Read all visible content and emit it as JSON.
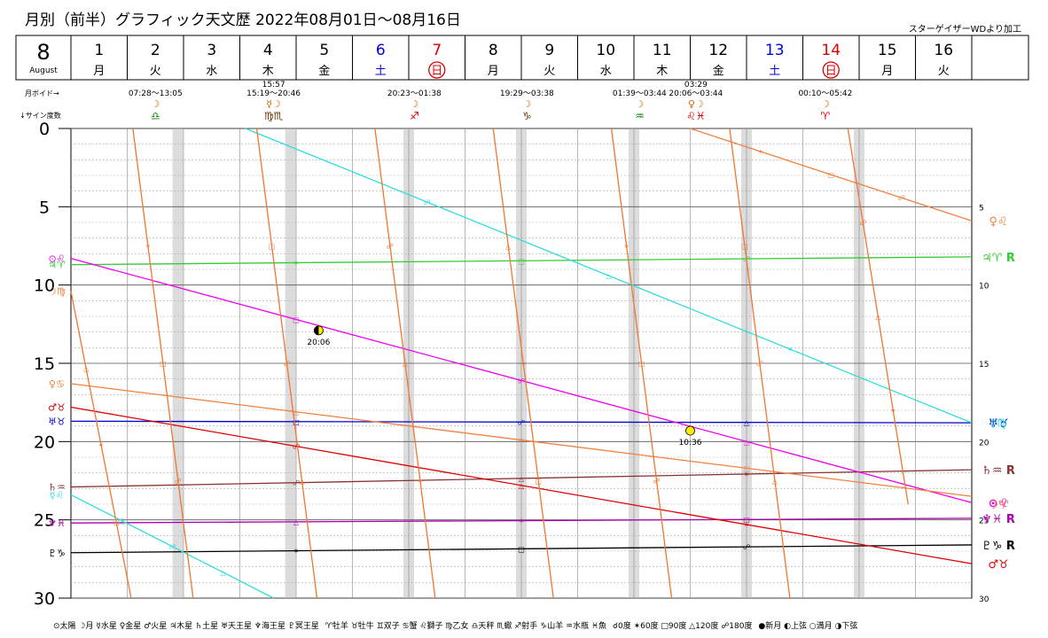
{
  "header": {
    "title": "月別（前半）グラフィック天文歴 2022年08月01日〜08月16日",
    "credit": "スターゲイザーWDより加工"
  },
  "calendar": {
    "month": "8",
    "month_name": "August",
    "days": [
      {
        "n": "1",
        "w": "月",
        "type": "weekday"
      },
      {
        "n": "2",
        "w": "火",
        "type": "weekday"
      },
      {
        "n": "3",
        "w": "水",
        "type": "weekday"
      },
      {
        "n": "4",
        "w": "木",
        "type": "weekday"
      },
      {
        "n": "5",
        "w": "金",
        "type": "weekday"
      },
      {
        "n": "6",
        "w": "土",
        "type": "sat"
      },
      {
        "n": "7",
        "w": "日",
        "type": "sun"
      },
      {
        "n": "8",
        "w": "月",
        "type": "weekday"
      },
      {
        "n": "9",
        "w": "火",
        "type": "weekday"
      },
      {
        "n": "10",
        "w": "水",
        "type": "weekday"
      },
      {
        "n": "11",
        "w": "木",
        "type": "weekday"
      },
      {
        "n": "12",
        "w": "金",
        "type": "weekday"
      },
      {
        "n": "13",
        "w": "土",
        "type": "sat"
      },
      {
        "n": "14",
        "w": "日",
        "type": "sun"
      },
      {
        "n": "15",
        "w": "月",
        "type": "weekday"
      },
      {
        "n": "16",
        "w": "火",
        "type": "weekday"
      }
    ]
  },
  "void_row": {
    "label_void": "月ボイド→",
    "label_sign": "↓サイン度数",
    "entries": [
      {
        "day": 2.0,
        "time": "07:28〜13:05",
        "glyph": "☽",
        "sign": "♎"
      },
      {
        "day": 4.1,
        "time": "15:19〜20:46",
        "pre": "15:57",
        "glyph": "☿☽",
        "sign": "♍♏"
      },
      {
        "day": 6.6,
        "time": "20:23〜01:38",
        "glyph": "☽",
        "sign": "♐"
      },
      {
        "day": 8.6,
        "time": "19:29〜03:38",
        "glyph": "☽",
        "sign": "♑"
      },
      {
        "day": 10.6,
        "time": "01:39〜03:44",
        "glyph": "☽",
        "sign": "♒"
      },
      {
        "day": 11.6,
        "time": "20:06〜03:44",
        "pre": "03:29",
        "glyph": "♀☽",
        "sign": "♌♓"
      },
      {
        "day": 13.9,
        "time": "00:10〜05:42",
        "glyph": "☽",
        "sign": "♈"
      }
    ]
  },
  "legend": {
    "planets": "⊙太陽 ☽月 ☿水星 ♀金星 ♂火星 ♃木星 ♄土星 ♅天王星 ♆海王星 ♇冥王星",
    "signs": "♈牡羊 ♉牡牛 ♊双子 ♋蟹 ♌獅子 ♍乙女 ♎天秤 ♏蠍 ♐射手 ♑山羊 ♒水瓶 ♓魚",
    "aspects": "☌0度 ✶60度 □90度 △120度 ☍180度",
    "phases": "●新月 ◐上弦 ○満月 ◑下弦"
  },
  "chart_data": {
    "type": "line",
    "xlabel": "",
    "ylabel": "",
    "xlim": [
      1,
      17
    ],
    "ylim": [
      0,
      30
    ],
    "y_ticks": [
      0,
      5,
      10,
      15,
      20,
      25,
      30
    ],
    "grid": true,
    "series": [
      {
        "name": "木星",
        "color": "#33cc33",
        "start": {
          "x": 1.0,
          "y": 8.7
        },
        "end": {
          "x": 17.0,
          "y": 8.2
        },
        "left_label": "♃♈",
        "right_label": "♃♈ R"
      },
      {
        "name": "天王星",
        "color": "#0000cc",
        "start": {
          "x": 1.0,
          "y": 18.7
        },
        "end": {
          "x": 17.0,
          "y": 18.8
        },
        "left_label": "♅♉",
        "right_label": "♅♉"
      },
      {
        "name": "土星",
        "color": "#883333",
        "start": {
          "x": 1.0,
          "y": 22.9
        },
        "end": {
          "x": 17.0,
          "y": 21.8
        },
        "left_label": "♄♒",
        "right_label": "♄♒ R"
      },
      {
        "name": "海王星",
        "color": "#aa00aa",
        "start": {
          "x": 1.0,
          "y": 25.2
        },
        "end": {
          "x": 17.0,
          "y": 24.9
        },
        "left_label": "♆♓",
        "right_label": "♆♓ R"
      },
      {
        "name": "冥王星",
        "color": "#000000",
        "start": {
          "x": 1.0,
          "y": 27.1
        },
        "end": {
          "x": 17.0,
          "y": 26.6
        },
        "left_label": "♇♑",
        "right_label": "♇♑ R"
      },
      {
        "name": "太陽",
        "color": "#ee00ee",
        "start": {
          "x": 1.0,
          "y": 8.3
        },
        "end": {
          "x": 17.0,
          "y": 23.9
        },
        "left_label": "⊙♌",
        "right_label": "⊙♌"
      },
      {
        "name": "火星",
        "color": "#dd0000",
        "start": {
          "x": 1.0,
          "y": 17.8
        },
        "end": {
          "x": 17.0,
          "y": 27.8
        },
        "left_label": "♂♉",
        "right_label": "♂♉"
      },
      {
        "name": "金星",
        "color": "#f08040",
        "start": {
          "x": 1.0,
          "y": 16.3
        },
        "end": {
          "x": 17.0,
          "y": 23.5
        },
        "left_label": "♀♋",
        "right_label": ""
      },
      {
        "name": "金星(獅子)",
        "color": "#f08040",
        "start": {
          "x": 12.0,
          "y": 0.0
        },
        "end": {
          "x": 17.0,
          "y": 5.9
        },
        "left_label": "",
        "right_label": "♀♌"
      },
      {
        "name": "水星",
        "color": "#33dddd",
        "start": {
          "x": 1.0,
          "y": 23.4
        },
        "end": {
          "x": 4.6,
          "y": 30.0
        },
        "left_label": "☿♌",
        "right_label": ""
      },
      {
        "name": "水星(乙女)",
        "color": "#33dddd",
        "start": {
          "x": 4.1,
          "y": 0.0
        },
        "end": {
          "x": 17.0,
          "y": 18.8
        },
        "left_label": "",
        "right_label": "☿♍"
      },
      {
        "name": "月1",
        "color": "#ee7733",
        "start": {
          "x": 1.0,
          "y": 10.4
        },
        "end": {
          "x": 2.07,
          "y": 30.0
        },
        "left_label": "☽♍",
        "right_label": ""
      },
      {
        "name": "月2",
        "color": "#ee7733",
        "start": {
          "x": 2.1,
          "y": 0.0
        },
        "end": {
          "x": 3.17,
          "y": 30.0
        },
        "left_label": "",
        "right_label": ""
      },
      {
        "name": "月3",
        "color": "#ee7733",
        "start": {
          "x": 4.3,
          "y": 0.0
        },
        "end": {
          "x": 5.37,
          "y": 30.0
        },
        "left_label": "",
        "right_label": ""
      },
      {
        "name": "月4",
        "color": "#ee7733",
        "start": {
          "x": 6.4,
          "y": 0.0
        },
        "end": {
          "x": 7.47,
          "y": 30.0
        },
        "left_label": "",
        "right_label": ""
      },
      {
        "name": "月5",
        "color": "#ee7733",
        "start": {
          "x": 8.5,
          "y": 0.0
        },
        "end": {
          "x": 9.57,
          "y": 30.0
        },
        "left_label": "",
        "right_label": ""
      },
      {
        "name": "月6",
        "color": "#ee7733",
        "start": {
          "x": 10.6,
          "y": 0.0
        },
        "end": {
          "x": 11.67,
          "y": 30.0
        },
        "left_label": "",
        "right_label": ""
      },
      {
        "name": "月7",
        "color": "#ee7733",
        "start": {
          "x": 12.7,
          "y": 0.0
        },
        "end": {
          "x": 13.77,
          "y": 30.0
        },
        "left_label": "",
        "right_label": ""
      },
      {
        "name": "月8",
        "color": "#ee7733",
        "start": {
          "x": 14.8,
          "y": 0.0
        },
        "end": {
          "x": 15.87,
          "y": 24.0
        },
        "left_label": "",
        "right_label": "☽♈"
      }
    ],
    "void_bands": [
      2.9,
      4.9,
      7.0,
      9.0,
      11.0,
      13.0,
      15.0
    ],
    "moon_phases": [
      {
        "x": 5.4,
        "y": 12.9,
        "phase": "first_quarter",
        "time": "20:06"
      },
      {
        "x": 12.0,
        "y": 19.3,
        "phase": "full",
        "time": "10:36"
      }
    ]
  }
}
